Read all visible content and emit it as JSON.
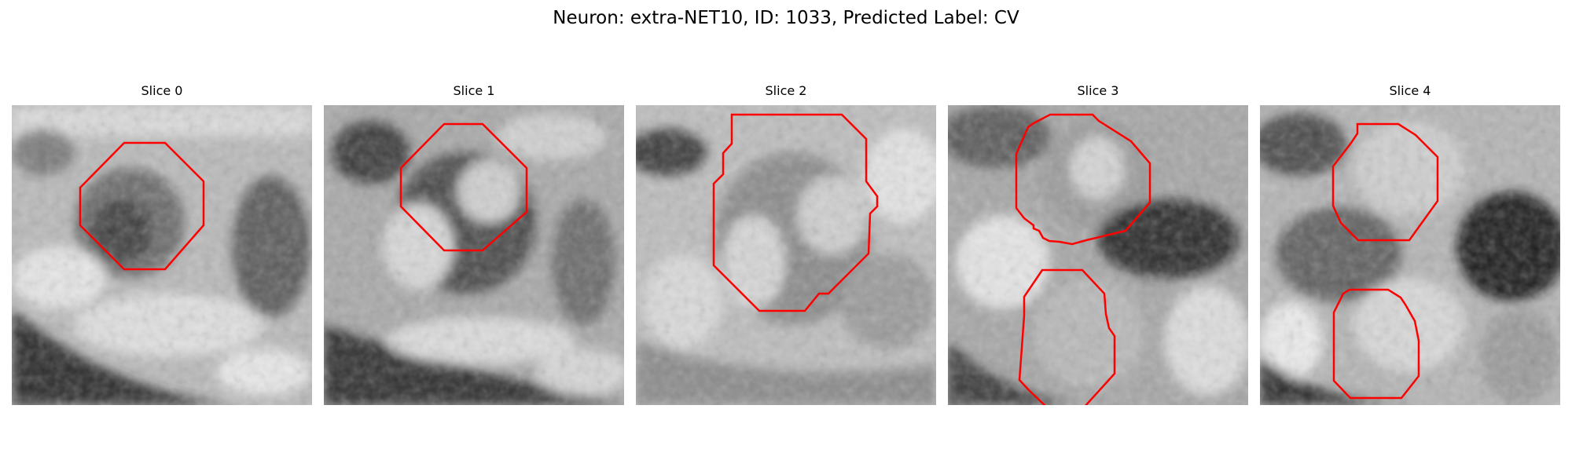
{
  "figure": {
    "title": "Neuron: extra-NET10, ID: 1033, Predicted Label: CV"
  },
  "slices": [
    {
      "label": "Slice 0",
      "contours": 1
    },
    {
      "label": "Slice 1",
      "contours": 1
    },
    {
      "label": "Slice 2",
      "contours": 1
    },
    {
      "label": "Slice 3",
      "contours": 2
    },
    {
      "label": "Slice 4",
      "contours": 2
    }
  ],
  "colors": {
    "contour": "#ff0000",
    "background": "#ffffff"
  }
}
